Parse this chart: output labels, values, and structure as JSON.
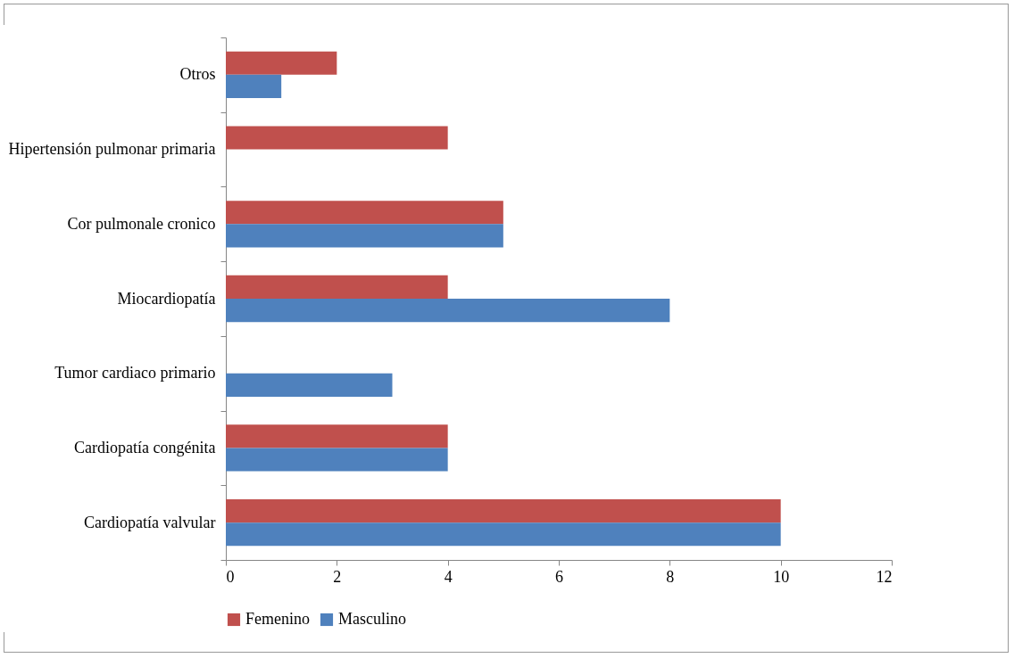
{
  "chart_data": {
    "type": "bar",
    "orientation": "horizontal",
    "categories": [
      "Otros",
      "Hipertensión pulmonar primaria",
      "Cor pulmonale cronico",
      "Miocardiopatía",
      "Tumor cardiaco primario",
      "Cardiopatía congénita",
      "Cardiopatía valvular"
    ],
    "series": [
      {
        "name": "Femenino",
        "color": "#c0504d",
        "values": [
          2,
          4,
          5,
          4,
          null,
          4,
          10
        ]
      },
      {
        "name": "Masculino",
        "color": "#4f81bd",
        "values": [
          1,
          null,
          5,
          8,
          3,
          4,
          10
        ]
      }
    ],
    "xlim": [
      0,
      12
    ],
    "xticks": [
      0,
      2,
      4,
      6,
      8,
      10,
      12
    ],
    "grid": false,
    "legend": "bottom"
  }
}
